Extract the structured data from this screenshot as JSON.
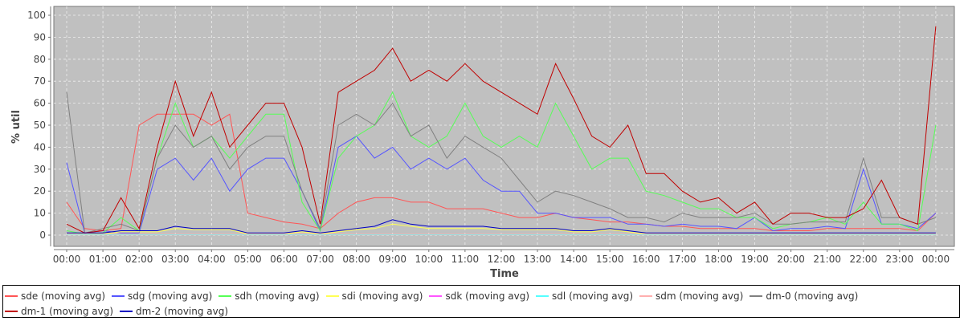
{
  "chart_data": {
    "type": "line",
    "title": "",
    "xlabel": "Time",
    "ylabel": "% util",
    "ylim": [
      -3,
      103
    ],
    "xlim_hours": [
      -0.35,
      24.5
    ],
    "grid": true,
    "legend_position": "bottom",
    "y_ticks": [
      "0",
      "10",
      "20",
      "30",
      "40",
      "50",
      "60",
      "70",
      "80",
      "90",
      "100"
    ],
    "x_ticks": [
      "00:00",
      "01:00",
      "02:00",
      "03:00",
      "04:00",
      "05:00",
      "06:00",
      "07:00",
      "08:00",
      "09:00",
      "10:00",
      "11:00",
      "12:00",
      "13:00",
      "14:00",
      "15:00",
      "16:00",
      "17:00",
      "18:00",
      "19:00",
      "20:00",
      "21:00",
      "22:00",
      "23:00",
      "00:00"
    ],
    "x_hours": [
      0,
      0.5,
      1,
      1.5,
      2,
      2.5,
      3,
      3.5,
      4,
      4.5,
      5,
      5.5,
      6,
      6.5,
      7,
      7.5,
      8,
      8.5,
      9,
      9.5,
      10,
      10.5,
      11,
      11.5,
      12,
      12.5,
      13,
      13.5,
      14,
      14.5,
      15,
      15.5,
      16,
      16.5,
      17,
      17.5,
      18,
      18.5,
      19,
      19.5,
      20,
      20.5,
      21,
      21.5,
      22,
      22.5,
      23,
      23.5,
      24
    ],
    "series": [
      {
        "name": "sde (moving avg)",
        "color": "#ff5555",
        "values": [
          15,
          3,
          2,
          3,
          50,
          55,
          55,
          55,
          50,
          55,
          10,
          8,
          6,
          5,
          3,
          10,
          15,
          17,
          17,
          15,
          15,
          12,
          12,
          12,
          10,
          8,
          8,
          10,
          8,
          7,
          6,
          6,
          5,
          4,
          4,
          3,
          3,
          3,
          3,
          2,
          2,
          2,
          3,
          3,
          3,
          3,
          3,
          2,
          10
        ]
      },
      {
        "name": "sdg (moving avg)",
        "color": "#5555ff",
        "values": [
          33,
          1,
          2,
          1,
          1,
          30,
          35,
          25,
          35,
          20,
          30,
          35,
          35,
          20,
          2,
          40,
          45,
          35,
          40,
          30,
          35,
          30,
          35,
          25,
          20,
          20,
          10,
          10,
          8,
          8,
          8,
          5,
          5,
          4,
          5,
          4,
          4,
          3,
          8,
          2,
          3,
          3,
          4,
          3,
          30,
          5,
          5,
          3,
          10
        ]
      },
      {
        "name": "sdh (moving avg)",
        "color": "#55ff55",
        "values": [
          2,
          0.5,
          1,
          8,
          2,
          35,
          60,
          40,
          45,
          35,
          45,
          55,
          55,
          15,
          2,
          35,
          45,
          50,
          65,
          45,
          40,
          45,
          60,
          45,
          40,
          45,
          40,
          60,
          45,
          30,
          35,
          35,
          20,
          18,
          15,
          12,
          12,
          8,
          8,
          3,
          5,
          6,
          8,
          5,
          15,
          5,
          5,
          2,
          50
        ]
      },
      {
        "name": "sdi (moving avg)",
        "color": "#ffff55",
        "values": [
          0.5,
          0.5,
          0.5,
          1.5,
          1.5,
          1.5,
          3,
          2.5,
          2.5,
          2.5,
          0.5,
          0.5,
          0.5,
          1.5,
          0.5,
          1.5,
          2.5,
          3,
          5,
          4,
          3,
          3,
          3,
          3,
          2.5,
          2.5,
          2.5,
          2.5,
          1.5,
          1.5,
          2.5,
          1.5,
          0.5,
          0.5,
          0.5,
          0.5,
          0.5,
          0.5,
          0.5,
          0.5,
          0.5,
          0.5,
          0.5,
          0.5,
          0.5,
          0.5,
          0.5,
          0.5,
          0.5
        ]
      },
      {
        "name": "sdk (moving avg)",
        "color": "#ff55ff",
        "values": [
          0.3,
          0.3,
          0.3,
          0.3,
          0.3,
          0.3,
          0.3,
          0.3,
          0.3,
          0.3,
          0.3,
          0.3,
          0.3,
          0.3,
          0.3,
          0.3,
          0.3,
          0.3,
          0.3,
          0.3,
          0.3,
          0.3,
          0.3,
          0.3,
          0.3,
          0.3,
          0.3,
          0.3,
          0.3,
          0.3,
          0.3,
          0.3,
          0.3,
          0.3,
          0.3,
          0.3,
          0.3,
          0.3,
          0.3,
          0.3,
          0.3,
          0.3,
          0.3,
          0.3,
          0.3,
          0.3,
          0.3,
          0.3,
          0.3
        ]
      },
      {
        "name": "sdl (moving avg)",
        "color": "#55ffff",
        "values": [
          0.2,
          0.2,
          0.2,
          0.2,
          0.2,
          0.2,
          0.2,
          0.2,
          0.2,
          0.2,
          0.2,
          0.2,
          0.2,
          0.2,
          0.2,
          0.2,
          0.2,
          0.2,
          0.2,
          0.2,
          0.2,
          0.2,
          0.2,
          0.2,
          0.2,
          0.2,
          0.2,
          0.2,
          0.2,
          0.2,
          0.2,
          0.2,
          0.2,
          0.2,
          0.2,
          0.2,
          0.2,
          0.2,
          0.2,
          0.2,
          0.2,
          0.2,
          0.2,
          0.2,
          0.2,
          0.2,
          0.2,
          0.2,
          0.2
        ]
      },
      {
        "name": "sdm (moving avg)",
        "color": "#ffafaf",
        "values": [
          0.4,
          0.4,
          0.4,
          0.4,
          0.4,
          0.4,
          0.4,
          0.4,
          0.4,
          0.4,
          0.4,
          0.4,
          0.4,
          0.4,
          0.4,
          0.4,
          0.4,
          0.4,
          0.4,
          0.4,
          0.4,
          0.4,
          0.4,
          0.4,
          0.4,
          0.4,
          0.4,
          0.4,
          0.4,
          0.4,
          0.4,
          0.4,
          0.4,
          0.4,
          0.4,
          0.4,
          0.4,
          0.4,
          0.4,
          0.4,
          0.4,
          0.4,
          0.4,
          0.4,
          0.4,
          0.4,
          0.4,
          0.4,
          0.4
        ]
      },
      {
        "name": "dm-0 (moving avg)",
        "color": "#808080",
        "values": [
          65,
          1,
          3,
          5,
          2,
          35,
          50,
          40,
          45,
          30,
          40,
          45,
          45,
          20,
          3,
          50,
          55,
          50,
          60,
          45,
          50,
          35,
          45,
          40,
          35,
          25,
          15,
          20,
          18,
          15,
          12,
          8,
          8,
          6,
          10,
          8,
          8,
          8,
          10,
          5,
          5,
          6,
          6,
          6,
          35,
          8,
          8,
          5,
          8
        ]
      },
      {
        "name": "dm-1 (moving avg)",
        "color": "#c00000",
        "values": [
          5,
          1,
          2,
          17,
          3,
          40,
          70,
          45,
          65,
          40,
          50,
          60,
          60,
          40,
          5,
          65,
          70,
          75,
          85,
          70,
          75,
          70,
          78,
          70,
          65,
          60,
          55,
          78,
          62,
          45,
          40,
          50,
          28,
          28,
          20,
          15,
          17,
          10,
          15,
          5,
          10,
          10,
          8,
          8,
          12,
          25,
          8,
          5,
          95
        ]
      },
      {
        "name": "dm-2 (moving avg)",
        "color": "#0000c0",
        "values": [
          1,
          1,
          1,
          2,
          2,
          2,
          4,
          3,
          3,
          3,
          1,
          1,
          1,
          2,
          1,
          2,
          3,
          4,
          7,
          5,
          4,
          4,
          4,
          4,
          3,
          3,
          3,
          3,
          2,
          2,
          3,
          2,
          1,
          1,
          1,
          1,
          1,
          1,
          1,
          1,
          1,
          1,
          1,
          1,
          1,
          1,
          1,
          1,
          1
        ]
      }
    ]
  }
}
